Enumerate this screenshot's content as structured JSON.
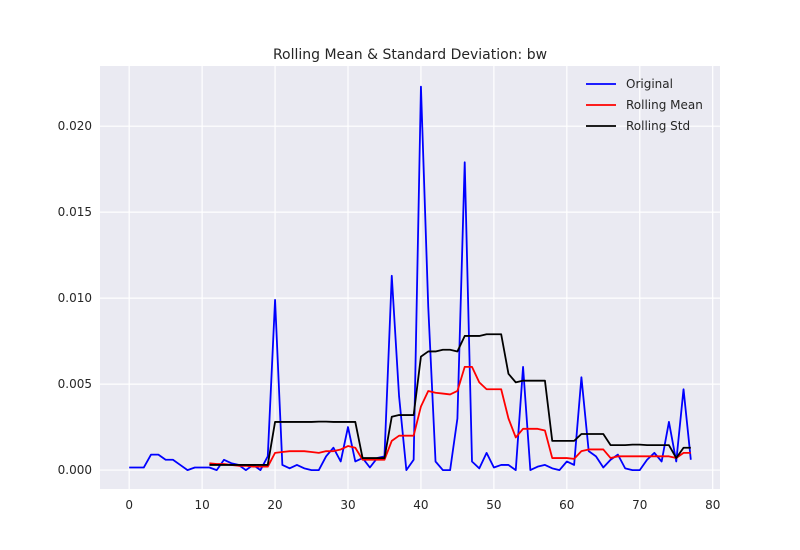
{
  "chart_data": {
    "type": "line",
    "title": "Rolling Mean & Standard Deviation: bw",
    "xlabel": "",
    "ylabel": "",
    "xlim": [
      -4,
      81
    ],
    "ylim": [
      -0.0011,
      0.0235
    ],
    "x_ticks": [
      0,
      10,
      20,
      30,
      40,
      50,
      60,
      70,
      80
    ],
    "y_ticks": [
      0.0,
      0.005,
      0.01,
      0.015,
      0.02
    ],
    "y_tick_labels": [
      "0.000",
      "0.005",
      "0.010",
      "0.015",
      "0.020"
    ],
    "grid": true,
    "legend_position": "top-right",
    "series": [
      {
        "name": "Original",
        "color": "#0000ff",
        "x": [
          0,
          1,
          2,
          3,
          4,
          5,
          6,
          7,
          8,
          9,
          10,
          11,
          12,
          13,
          14,
          15,
          16,
          17,
          18,
          19,
          20,
          21,
          22,
          23,
          24,
          25,
          26,
          27,
          28,
          29,
          30,
          31,
          32,
          33,
          34,
          35,
          36,
          37,
          38,
          39,
          40,
          41,
          42,
          43,
          44,
          45,
          46,
          47,
          48,
          49,
          50,
          51,
          52,
          53,
          54,
          55,
          56,
          57,
          58,
          59,
          60,
          61,
          62,
          63,
          64,
          65,
          66,
          67,
          68,
          69,
          70,
          71,
          72,
          73,
          74,
          75,
          76,
          77
        ],
        "y": [
          0.00015,
          0.00015,
          0.00015,
          0.0009,
          0.0009,
          0.0006,
          0.0006,
          0.0003,
          0.0,
          0.00015,
          0.00015,
          0.00015,
          0.0,
          0.0006,
          0.0004,
          0.0003,
          0.0,
          0.0003,
          0.0,
          0.0008,
          0.0099,
          0.0003,
          0.0001,
          0.0003,
          0.0001,
          0.0,
          0.0,
          0.0008,
          0.0013,
          0.0005,
          0.0025,
          0.0005,
          0.0007,
          0.00015,
          0.0007,
          0.0008,
          0.0113,
          0.0043,
          0.0,
          0.0006,
          0.0223,
          0.0095,
          0.0005,
          0.0,
          0.0,
          0.003,
          0.0179,
          0.0005,
          0.0001,
          0.001,
          0.00015,
          0.0003,
          0.0003,
          0.0,
          0.006,
          0.0,
          0.0002,
          0.0003,
          0.0001,
          0.0,
          0.0005,
          0.0003,
          0.0054,
          0.0011,
          0.0008,
          0.00015,
          0.0006,
          0.0009,
          0.0001,
          0.0,
          0.0,
          0.0006,
          0.001,
          0.0005,
          0.0028,
          0.0005,
          0.0047,
          0.0006
        ]
      },
      {
        "name": "Rolling Mean",
        "color": "#ff0000",
        "x": [
          11,
          12,
          13,
          14,
          15,
          16,
          17,
          18,
          19,
          20,
          21,
          22,
          23,
          24,
          25,
          26,
          27,
          28,
          29,
          30,
          31,
          32,
          33,
          34,
          35,
          36,
          37,
          38,
          39,
          40,
          41,
          42,
          43,
          44,
          45,
          46,
          47,
          48,
          49,
          50,
          51,
          52,
          53,
          54,
          55,
          56,
          57,
          58,
          59,
          60,
          61,
          62,
          63,
          64,
          65,
          66,
          67,
          68,
          69,
          70,
          71,
          72,
          73,
          74,
          75,
          76,
          77
        ],
        "y": [
          0.0004,
          0.00035,
          0.00035,
          0.0003,
          0.00025,
          0.00025,
          0.0002,
          0.0002,
          0.0002,
          0.001,
          0.00105,
          0.0011,
          0.0011,
          0.0011,
          0.00105,
          0.001,
          0.0011,
          0.0011,
          0.0012,
          0.0014,
          0.0013,
          0.0006,
          0.0006,
          0.0006,
          0.0006,
          0.0017,
          0.002,
          0.002,
          0.002,
          0.0037,
          0.0046,
          0.0045,
          0.00445,
          0.0044,
          0.0046,
          0.006,
          0.006,
          0.0051,
          0.0047,
          0.0047,
          0.0047,
          0.003,
          0.0019,
          0.0024,
          0.0024,
          0.0024,
          0.0023,
          0.0007,
          0.0007,
          0.0007,
          0.00065,
          0.0011,
          0.0012,
          0.0012,
          0.0012,
          0.0007,
          0.0008,
          0.0008,
          0.0008,
          0.0008,
          0.0008,
          0.0008,
          0.0008,
          0.0008,
          0.0007,
          0.001,
          0.001
        ]
      },
      {
        "name": "Rolling Std",
        "color": "#000000",
        "x": [
          11,
          12,
          13,
          14,
          15,
          16,
          17,
          18,
          19,
          20,
          21,
          22,
          23,
          24,
          25,
          26,
          27,
          28,
          29,
          30,
          31,
          32,
          33,
          34,
          35,
          36,
          37,
          38,
          39,
          40,
          41,
          42,
          43,
          44,
          45,
          46,
          47,
          48,
          49,
          50,
          51,
          52,
          53,
          54,
          55,
          56,
          57,
          58,
          59,
          60,
          61,
          62,
          63,
          64,
          65,
          66,
          67,
          68,
          69,
          70,
          71,
          72,
          73,
          74,
          75,
          76,
          77
        ],
        "y": [
          0.0003,
          0.0003,
          0.0003,
          0.0003,
          0.0003,
          0.0003,
          0.0003,
          0.0003,
          0.0003,
          0.0028,
          0.0028,
          0.0028,
          0.0028,
          0.0028,
          0.0028,
          0.00282,
          0.00282,
          0.0028,
          0.0028,
          0.0028,
          0.0028,
          0.0007,
          0.0007,
          0.0007,
          0.0007,
          0.0031,
          0.0032,
          0.0032,
          0.0032,
          0.0066,
          0.0069,
          0.0069,
          0.007,
          0.007,
          0.0069,
          0.0078,
          0.0078,
          0.0078,
          0.0079,
          0.0079,
          0.0079,
          0.0056,
          0.0051,
          0.0052,
          0.0052,
          0.0052,
          0.0052,
          0.0017,
          0.0017,
          0.0017,
          0.0017,
          0.0021,
          0.0021,
          0.0021,
          0.0021,
          0.00145,
          0.00145,
          0.00145,
          0.00148,
          0.00148,
          0.00145,
          0.00145,
          0.00145,
          0.00145,
          0.0007,
          0.0013,
          0.0013
        ]
      }
    ]
  }
}
